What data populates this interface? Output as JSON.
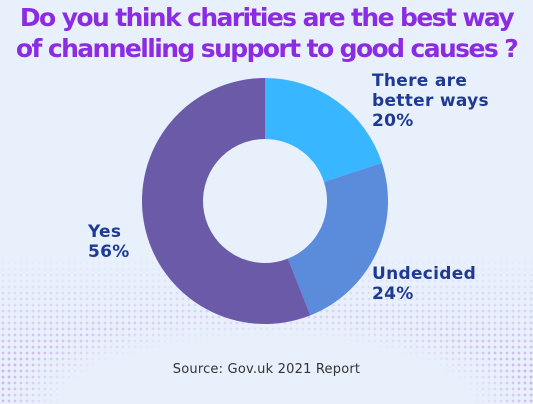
{
  "title_lines": [
    "Do you think charities are the best way",
    "of channelling support to good causes ?"
  ],
  "chart_data": {
    "type": "pie",
    "style": "donut",
    "slices": [
      {
        "label": "There are better ways",
        "label_lines": [
          "There are",
          "better ways"
        ],
        "value": 20,
        "value_label": "20%",
        "color": "#38b6ff"
      },
      {
        "label": "Undecided",
        "label_lines": [
          "Undecided"
        ],
        "value": 24,
        "value_label": "24%",
        "color": "#5b8bdb"
      },
      {
        "label": "Yes",
        "label_lines": [
          "Yes"
        ],
        "value": 56,
        "value_label": "56%",
        "color": "#6a5aa8"
      }
    ]
  },
  "source": "Source: Gov.uk 2021 Report",
  "colors": {
    "title": "#8b2be2",
    "labels": "#1f3a93",
    "background": "#e8f0fb"
  }
}
